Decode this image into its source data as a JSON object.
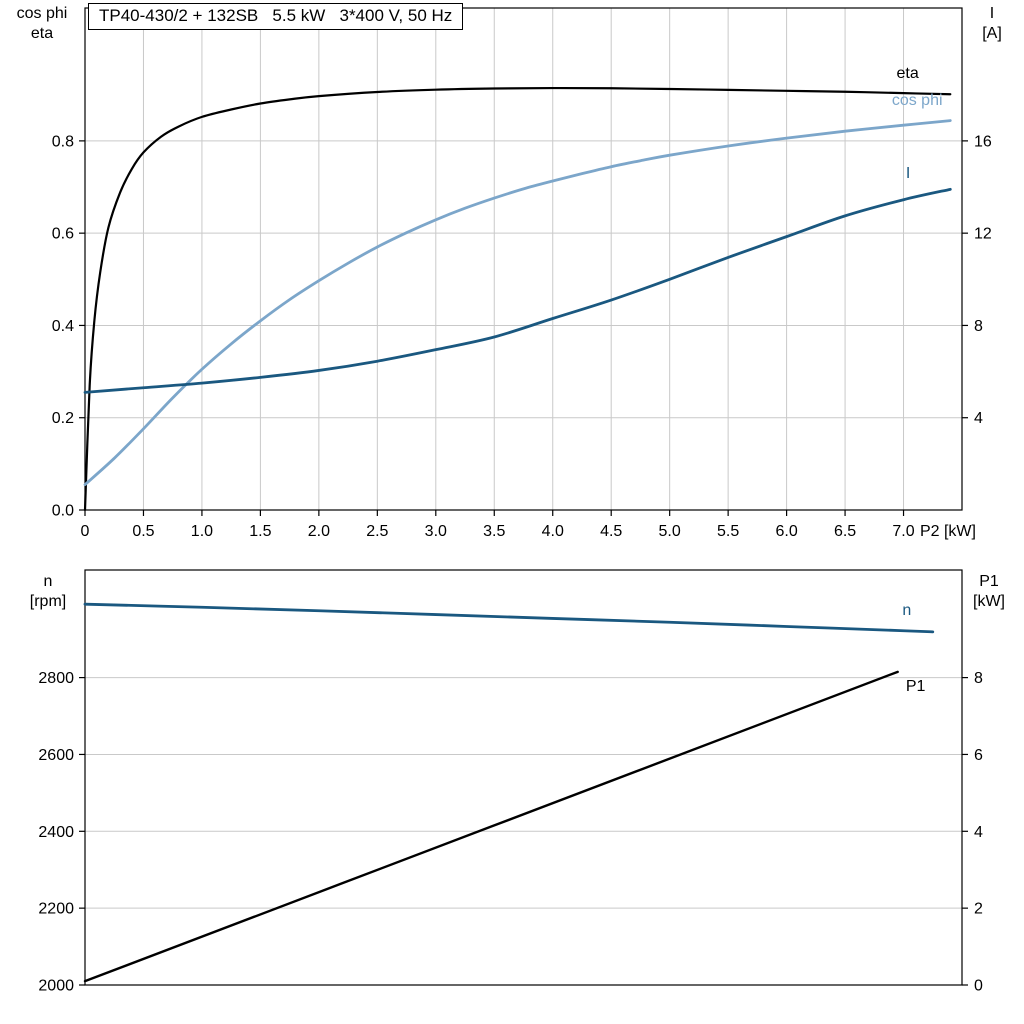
{
  "header": {
    "title": "TP40-430/2 + 132SB   5.5 kW   3*400 V, 50 Hz"
  },
  "axis_titles": {
    "top_left": [
      "cos phi",
      "eta"
    ],
    "top_right": [
      "I",
      "[A]"
    ],
    "bottom_left": [
      "n",
      "[rpm]"
    ],
    "bottom_right": [
      "P1",
      "[kW]"
    ]
  },
  "colors": {
    "black": "#000000",
    "dark_blue": "#1a5880",
    "light_blue": "#7ca6ca",
    "grid": "#c9c9c9",
    "frame": "#000000"
  },
  "chart_data": [
    {
      "type": "line",
      "title": "TP40-430/2 + 132SB   5.5 kW   3*400 V, 50 Hz",
      "x_axis": {
        "min": 0,
        "max": 7.5,
        "ticks": [
          0,
          0.5,
          1,
          1.5,
          2,
          2.5,
          3,
          3.5,
          4,
          4.5,
          5,
          5.5,
          6,
          6.5,
          7
        ],
        "tick_labels": [
          "0",
          "0.5",
          "1.0",
          "1.5",
          "2.0",
          "2.5",
          "3.0",
          "3.5",
          "4.0",
          "4.5",
          "5.0",
          "5.5",
          "6.0",
          "6.5",
          "7.0"
        ],
        "grid": [
          0.5,
          1,
          1.5,
          2,
          2.5,
          3,
          3.5,
          4,
          4.5,
          5,
          5.5,
          6,
          6.5,
          7
        ],
        "unit_label": "P2 [kW]",
        "unit_x": 7.38
      },
      "y_left": {
        "title": "cos phi / eta",
        "min": 0,
        "max": 1.088,
        "ticks": [
          0,
          0.2,
          0.4,
          0.6,
          0.8
        ],
        "tick_labels": [
          "0.0",
          "0.2",
          "0.4",
          "0.6",
          "0.8"
        ],
        "grid": [
          0.2,
          0.4,
          0.6,
          0.8
        ]
      },
      "y_right": {
        "title": "I [A]",
        "min": 0,
        "max": 21.76,
        "ticks": [
          4,
          8,
          12,
          16
        ],
        "tick_labels": [
          "4",
          "8",
          "12",
          "16"
        ]
      },
      "series": [
        {
          "name": "eta",
          "axis": "left",
          "color": "#000000",
          "width": 2.2,
          "label_pos": [
            6.94,
            0.936
          ],
          "points": [
            [
              0,
              0
            ],
            [
              0.04,
              0.27
            ],
            [
              0.08,
              0.41
            ],
            [
              0.13,
              0.515
            ],
            [
              0.2,
              0.612
            ],
            [
              0.3,
              0.688
            ],
            [
              0.4,
              0.739
            ],
            [
              0.5,
              0.775
            ],
            [
              0.65,
              0.809
            ],
            [
              0.8,
              0.831
            ],
            [
              1.0,
              0.852
            ],
            [
              1.25,
              0.868
            ],
            [
              1.5,
              0.881
            ],
            [
              1.75,
              0.89
            ],
            [
              2.0,
              0.897
            ],
            [
              2.5,
              0.906
            ],
            [
              3.0,
              0.911
            ],
            [
              3.5,
              0.9135
            ],
            [
              4.0,
              0.9145
            ],
            [
              4.5,
              0.914
            ],
            [
              5.0,
              0.9125
            ],
            [
              5.5,
              0.9105
            ],
            [
              6.0,
              0.9085
            ],
            [
              6.5,
              0.9065
            ],
            [
              7.0,
              0.9035
            ],
            [
              7.4,
              0.901
            ]
          ]
        },
        {
          "name": "cos phi",
          "axis": "left",
          "color": "#7ca6ca",
          "width": 2.8,
          "label_pos": [
            6.9,
            0.878
          ],
          "points": [
            [
              0,
              0.055
            ],
            [
              0.25,
              0.112
            ],
            [
              0.5,
              0.176
            ],
            [
              0.75,
              0.243
            ],
            [
              1.0,
              0.305
            ],
            [
              1.25,
              0.36
            ],
            [
              1.5,
              0.41
            ],
            [
              1.75,
              0.456
            ],
            [
              2.0,
              0.497
            ],
            [
              2.25,
              0.535
            ],
            [
              2.5,
              0.57
            ],
            [
              2.75,
              0.601
            ],
            [
              3.0,
              0.629
            ],
            [
              3.25,
              0.654
            ],
            [
              3.5,
              0.676
            ],
            [
              3.75,
              0.696
            ],
            [
              4.0,
              0.713
            ],
            [
              4.25,
              0.729
            ],
            [
              4.5,
              0.744
            ],
            [
              4.75,
              0.757
            ],
            [
              5.0,
              0.769
            ],
            [
              5.5,
              0.789
            ],
            [
              6.0,
              0.806
            ],
            [
              6.5,
              0.821
            ],
            [
              7.0,
              0.834
            ],
            [
              7.4,
              0.844
            ]
          ]
        },
        {
          "name": "I",
          "axis": "right",
          "color": "#1a5880",
          "width": 2.8,
          "label_pos": [
            7.02,
            14.4
          ],
          "points": [
            [
              0,
              5.1
            ],
            [
              0.5,
              5.3
            ],
            [
              1.0,
              5.5
            ],
            [
              1.5,
              5.75
            ],
            [
              2.0,
              6.05
            ],
            [
              2.5,
              6.45
            ],
            [
              3.0,
              6.95
            ],
            [
              3.5,
              7.5
            ],
            [
              4.0,
              8.3
            ],
            [
              4.5,
              9.1
            ],
            [
              5.0,
              10.0
            ],
            [
              5.5,
              10.95
            ],
            [
              6.0,
              11.85
            ],
            [
              6.5,
              12.75
            ],
            [
              7.0,
              13.45
            ],
            [
              7.4,
              13.9
            ]
          ]
        }
      ]
    },
    {
      "type": "line",
      "title": "Speed and input power",
      "x_axis": {
        "min": 0,
        "max": 7.5
      },
      "y_left": {
        "title": "n [rpm]",
        "min": 2000,
        "max": 3080,
        "ticks": [
          2000,
          2200,
          2400,
          2600,
          2800
        ],
        "tick_labels": [
          "2000",
          "2200",
          "2400",
          "2600",
          "2800"
        ],
        "grid": [
          2200,
          2400,
          2600,
          2800
        ]
      },
      "y_right": {
        "title": "P1 [kW]",
        "min": 0,
        "max": 10.8,
        "ticks": [
          0,
          2,
          4,
          6,
          8
        ],
        "tick_labels": [
          "0",
          "2",
          "4",
          "6",
          "8"
        ]
      },
      "series": [
        {
          "name": "n",
          "axis": "left",
          "color": "#1a5880",
          "width": 2.8,
          "label_pos": [
            6.99,
            2963
          ],
          "points": [
            [
              0,
              2991
            ],
            [
              1,
              2983
            ],
            [
              2,
              2974
            ],
            [
              3,
              2964
            ],
            [
              4,
              2954
            ],
            [
              5,
              2944
            ],
            [
              6,
              2933
            ],
            [
              7,
              2922
            ],
            [
              7.25,
              2919
            ]
          ]
        },
        {
          "name": "P1",
          "axis": "right",
          "color": "#000000",
          "width": 2.4,
          "label_pos": [
            7.02,
            7.65
          ],
          "points": [
            [
              0,
              0.1
            ],
            [
              3.48,
              4.13
            ],
            [
              6.95,
              8.15
            ]
          ]
        }
      ]
    }
  ]
}
